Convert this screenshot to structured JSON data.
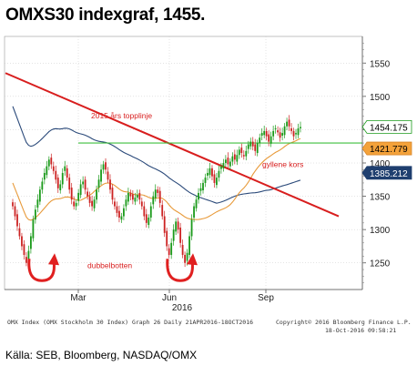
{
  "title": "OMXS30 indexgraf, 1455.",
  "footer": {
    "left1": "OMX Index (OMX Stockholm 30 Index) Graph 26  Daily 21APR2016-18OCT2016",
    "right1": "Copyright© 2016 Bloomberg Finance L.P.",
    "right2": "18-Oct-2016 09:58:21"
  },
  "source": "Källa: SEB, Bloomberg, NASDAQ/OMX",
  "colors": {
    "up_candle": "#1a9a1a",
    "down_candle": "#cc2222",
    "trendline": "#d81e1e",
    "long_ma": "#2b4a7a",
    "short_ma": "#e89a3a",
    "support": "#3fbf3f",
    "arrows": "#e02020"
  },
  "chart_data": {
    "type": "line",
    "ylim": [
      1210,
      1590
    ],
    "yticks": [
      "1250",
      "1300",
      "1350",
      "1400",
      "1450",
      "1500",
      "1550"
    ],
    "xticks": [
      "Mar",
      "Jun",
      "Sep"
    ],
    "xsublabel": "2016",
    "price_labels": [
      {
        "text": "1454.175",
        "value": 1454.175
      },
      {
        "text": "1421.779",
        "value": 1421.779
      },
      {
        "text": "1385.212",
        "value": 1385.212
      }
    ],
    "annotations": [
      "2015 års topplinje",
      "gyllene kors",
      "dubbelbotten"
    ],
    "series": [
      {
        "kind": "close",
        "values": [
          1335,
          1320,
          1305,
          1290,
          1275,
          1262,
          1250,
          1268,
          1290,
          1315,
          1330,
          1345,
          1360,
          1372,
          1385,
          1395,
          1405,
          1398,
          1388,
          1375,
          1362,
          1368,
          1385,
          1395,
          1378,
          1360,
          1345,
          1335,
          1340,
          1355,
          1368,
          1372,
          1360,
          1350,
          1340,
          1335,
          1345,
          1360,
          1375,
          1390,
          1398,
          1390,
          1375,
          1360,
          1345,
          1335,
          1325,
          1318,
          1320,
          1332,
          1345,
          1355,
          1350,
          1345,
          1348,
          1352,
          1345,
          1335,
          1320,
          1310,
          1318,
          1335,
          1350,
          1360,
          1355,
          1340,
          1320,
          1295,
          1275,
          1262,
          1280,
          1300,
          1312,
          1300,
          1280,
          1262,
          1250,
          1265,
          1290,
          1315,
          1335,
          1345,
          1355,
          1362,
          1370,
          1378,
          1385,
          1392,
          1380,
          1370,
          1378,
          1388,
          1395,
          1400,
          1405,
          1398,
          1402,
          1410,
          1405,
          1412,
          1420,
          1415,
          1410,
          1418,
          1428,
          1432,
          1425,
          1418,
          1430,
          1438,
          1445,
          1448,
          1440,
          1432,
          1440,
          1448,
          1452,
          1446,
          1438,
          1445,
          1455,
          1462,
          1455,
          1448,
          1440,
          1445,
          1452,
          1454
        ]
      }
    ]
  }
}
